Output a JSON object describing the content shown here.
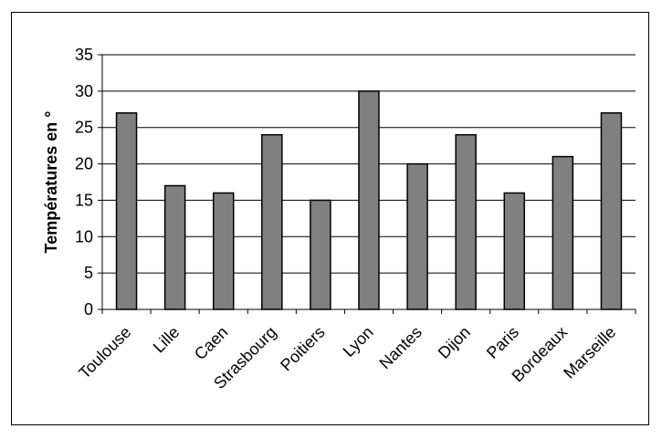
{
  "chart_data": {
    "type": "bar",
    "title": "",
    "xlabel": "",
    "ylabel": "Températures en °",
    "categories": [
      "Toulouse",
      "Lille",
      "Caen",
      "Strasbourg",
      "Poitiers",
      "Lyon",
      "Nantes",
      "Dijon",
      "Paris",
      "Bordeaux",
      "Marseille"
    ],
    "values": [
      27,
      17,
      16,
      24,
      15,
      30,
      20,
      24,
      16,
      21,
      27
    ],
    "ylim": [
      0,
      35
    ],
    "yticks": [
      0,
      5,
      10,
      15,
      20,
      25,
      30,
      35
    ],
    "grid": true,
    "legend": "none",
    "bar_color": "#808080"
  }
}
